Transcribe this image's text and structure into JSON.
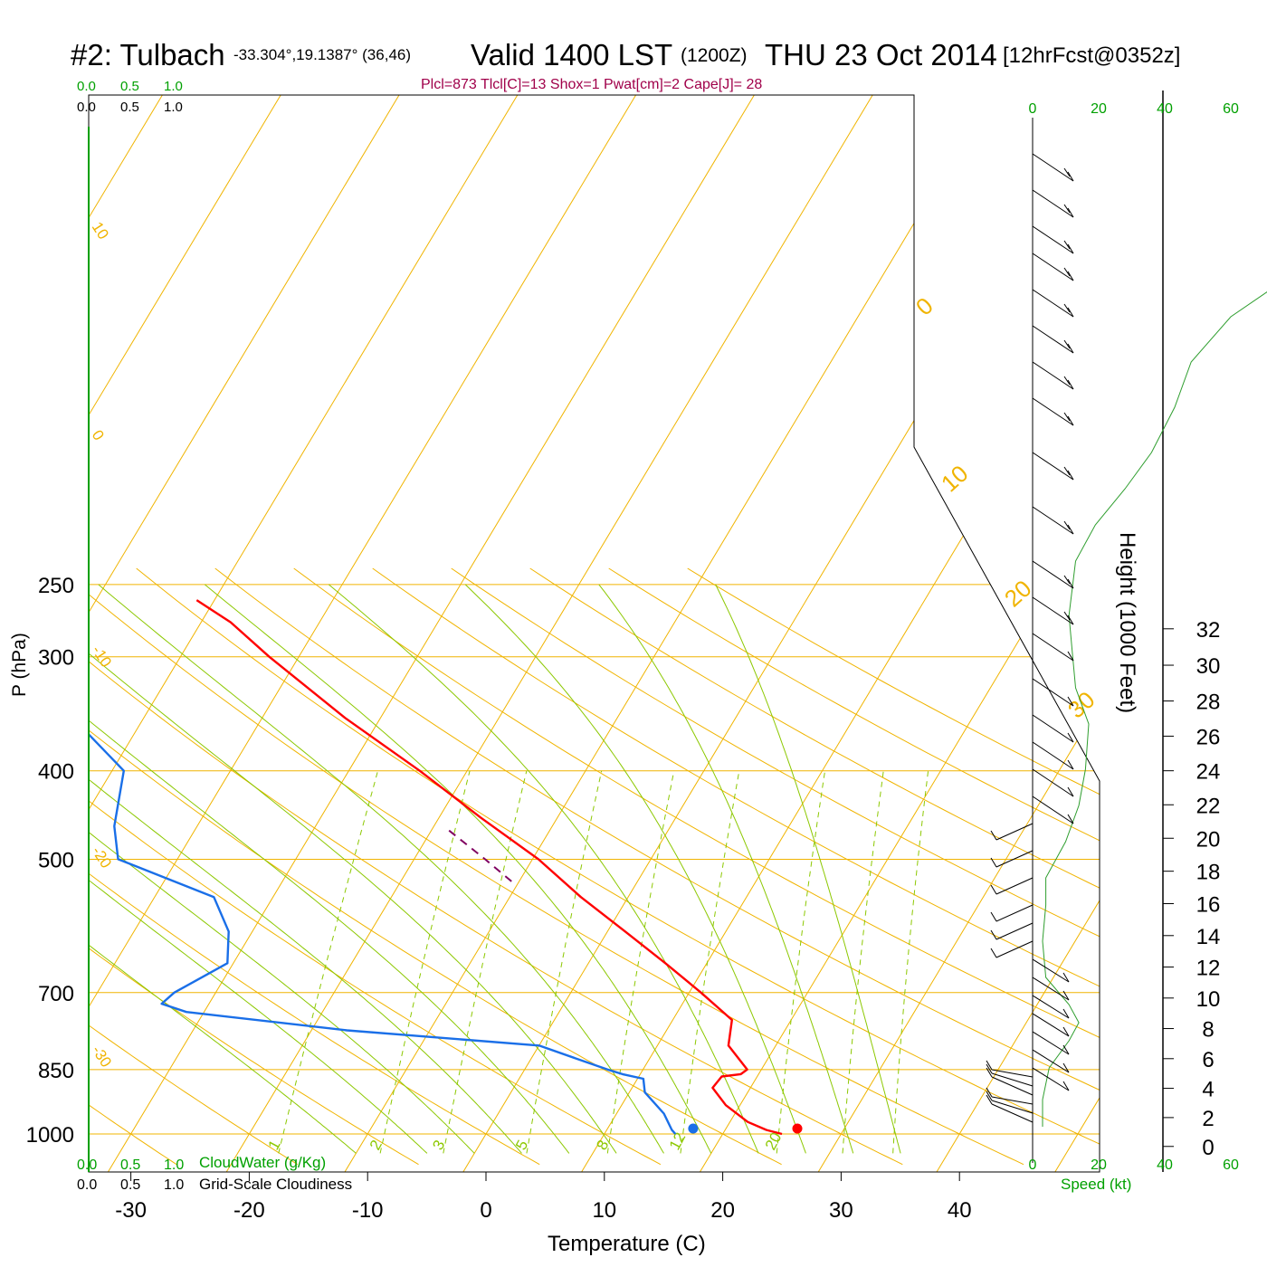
{
  "header": {
    "station": "#2: Tulbach",
    "coords": "-33.304°,19.1387° (36,46)",
    "valid": "Valid 1400 LST",
    "utc": "(1200Z)",
    "date": "THU 23 Oct 2014",
    "forecast": "[12hrFcst@0352z]"
  },
  "indices": "Plcl=873 Tlcl[C]=13 Shox=1 Pwat[cm]=2 Cape[J]= 28",
  "cloud_scales": {
    "green_ticks": [
      "0.0",
      "0.5",
      "1.0"
    ],
    "black_ticks": [
      "0.0",
      "0.5",
      "1.0"
    ],
    "cloudwater_label": "CloudWater (g/Kg)",
    "cloudiness_label": "Grid-Scale Cloudiness"
  },
  "axes": {
    "ylabel": "P (hPa)",
    "xlabel": "Temperature (C)",
    "right_label": "Height (1000 Feet)",
    "speed_label": "Speed (kt)"
  },
  "colors": {
    "isotherm": "#f0b400",
    "mixing": "#8cc800",
    "dryadiabat": "#8cc800",
    "temperature": "#ff0000",
    "dewpoint": "#1a6fe8",
    "green_text": "#00a000",
    "indices": "#a0004a",
    "parcel": "#800060"
  },
  "chart_data": {
    "type": "line",
    "title": "Skew-T sounding",
    "pressure_levels": [
      250,
      300,
      400,
      500,
      700,
      850,
      1000
    ],
    "temp_ticks": [
      -30,
      -20,
      -10,
      0,
      10,
      20,
      30,
      40
    ],
    "isotherm_labels": [
      {
        "text": "10",
        "t": 10
      },
      {
        "text": "0",
        "t": 0
      },
      {
        "text": "-10",
        "t": -10
      },
      {
        "text": "-20",
        "t": -20
      },
      {
        "text": "-30",
        "t": -30
      },
      {
        "text": "0",
        "t": 0
      },
      {
        "text": "10",
        "t": 10
      },
      {
        "text": "20",
        "t": 20
      },
      {
        "text": "30",
        "t": 30
      }
    ],
    "mixing_ratio_labels": [
      "1",
      "2",
      "3",
      "5",
      "8",
      "12",
      "20"
    ],
    "height_ticks": [
      0,
      2,
      4,
      6,
      8,
      10,
      12,
      14,
      16,
      18,
      20,
      22,
      24,
      26,
      28,
      30,
      32
    ],
    "speed_ticks": [
      0,
      20,
      40,
      60
    ],
    "temperature": [
      {
        "p": 1000,
        "t": 25.0
      },
      {
        "p": 990,
        "t": 23.5
      },
      {
        "p": 970,
        "t": 21.5
      },
      {
        "p": 930,
        "t": 18.8
      },
      {
        "p": 890,
        "t": 16.8
      },
      {
        "p": 865,
        "t": 17.0
      },
      {
        "p": 860,
        "t": 18.5
      },
      {
        "p": 850,
        "t": 18.8
      },
      {
        "p": 800,
        "t": 16.0
      },
      {
        "p": 750,
        "t": 15.0
      },
      {
        "p": 700,
        "t": 11.0
      },
      {
        "p": 650,
        "t": 6.5
      },
      {
        "p": 600,
        "t": 1.5
      },
      {
        "p": 550,
        "t": -4.0
      },
      {
        "p": 500,
        "t": -9.5
      },
      {
        "p": 450,
        "t": -16.5
      },
      {
        "p": 400,
        "t": -24.0
      },
      {
        "p": 350,
        "t": -33.0
      },
      {
        "p": 300,
        "t": -42.5
      },
      {
        "p": 275,
        "t": -47.5
      },
      {
        "p": 260,
        "t": -51.5
      }
    ],
    "dewpoint": [
      {
        "p": 1000,
        "t": 16.0
      },
      {
        "p": 990,
        "t": 15.5
      },
      {
        "p": 950,
        "t": 14.0
      },
      {
        "p": 900,
        "t": 11.3
      },
      {
        "p": 870,
        "t": 10.5
      },
      {
        "p": 860,
        "t": 8.5
      },
      {
        "p": 850,
        "t": 7.0
      },
      {
        "p": 800,
        "t": 0.0
      },
      {
        "p": 770,
        "t": -17.0
      },
      {
        "p": 735,
        "t": -31.5
      },
      {
        "p": 720,
        "t": -34.0
      },
      {
        "p": 700,
        "t": -33.5
      },
      {
        "p": 650,
        "t": -30.5
      },
      {
        "p": 600,
        "t": -32.0
      },
      {
        "p": 550,
        "t": -35.0
      },
      {
        "p": 500,
        "t": -45.0
      },
      {
        "p": 460,
        "t": -47.0
      },
      {
        "p": 400,
        "t": -49.0
      },
      {
        "p": 350,
        "t": -56.0
      },
      {
        "p": 320,
        "t": -59.0
      },
      {
        "p": 300,
        "t": -60.5
      },
      {
        "p": 280,
        "t": -62.5
      },
      {
        "p": 260,
        "t": -64.5
      }
    ],
    "parcel": [
      {
        "p": 465,
        "t": -18.5
      },
      {
        "p": 500,
        "t": -14.0
      },
      {
        "p": 530,
        "t": -10.5
      }
    ],
    "surface_temp_dot": 26.3,
    "surface_dew_dot": 17.5,
    "xlim": [
      -35,
      45
    ],
    "ylim": [
      1050,
      250
    ]
  }
}
